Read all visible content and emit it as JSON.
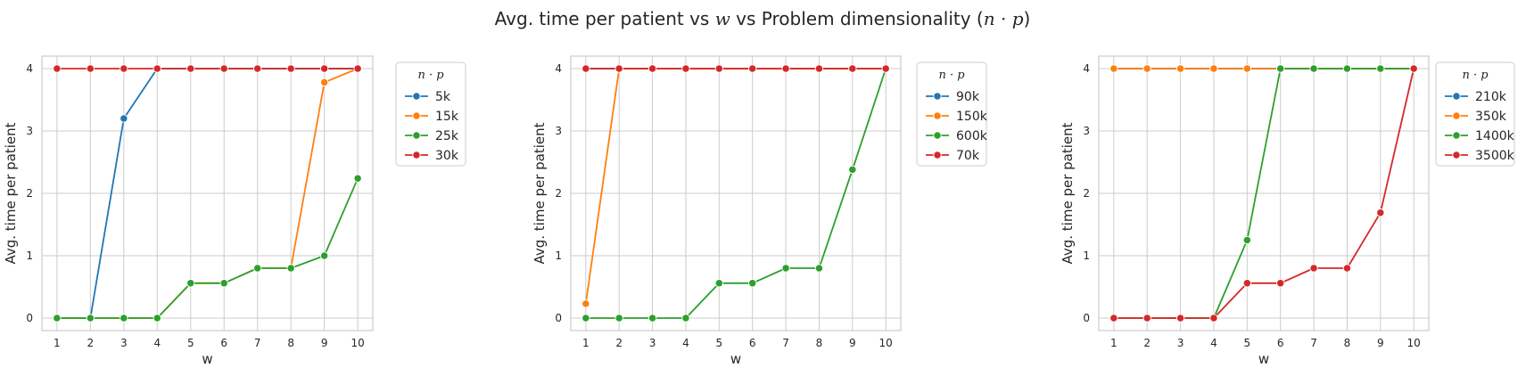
{
  "figure": {
    "title_prefix": "Avg. time per patient vs ",
    "title_var": "w",
    "title_mid": " vs Problem dimensionality (",
    "title_expr": "n · p",
    "title_suffix": ")"
  },
  "colors": {
    "c0": "#1f77b4",
    "c1": "#ff7f0e",
    "c2": "#2ca02c",
    "c3": "#d62728",
    "grid": "#cccccc",
    "frame": "#cccccc"
  },
  "chart_data": [
    {
      "type": "line",
      "xlabel": "w",
      "ylabel": "Avg. time per patient",
      "xlim": [
        0.55,
        10.45
      ],
      "ylim": [
        -0.2,
        4.2
      ],
      "xticks": [
        1,
        2,
        3,
        4,
        5,
        6,
        7,
        8,
        9,
        10
      ],
      "yticks": [
        0,
        1,
        2,
        3,
        4
      ],
      "grid": true,
      "legend_title": "n · p",
      "legend_loc": "outside-upper-right",
      "x": [
        1,
        2,
        3,
        4,
        5,
        6,
        7,
        8,
        9,
        10
      ],
      "series": [
        {
          "name": "5k",
          "color": "#1f77b4",
          "values": [
            0,
            0,
            3.2,
            4,
            4,
            4,
            4,
            4,
            4,
            4
          ]
        },
        {
          "name": "15k",
          "color": "#ff7f0e",
          "values": [
            0,
            0,
            0,
            0,
            0.56,
            0.56,
            0.8,
            0.8,
            3.78,
            4
          ]
        },
        {
          "name": "25k",
          "color": "#2ca02c",
          "values": [
            0,
            0,
            0,
            0,
            0.56,
            0.56,
            0.8,
            0.8,
            1.0,
            2.24
          ]
        },
        {
          "name": "30k",
          "color": "#d62728",
          "values": [
            4,
            4,
            4,
            4,
            4,
            4,
            4,
            4,
            4,
            4
          ]
        }
      ]
    },
    {
      "type": "line",
      "xlabel": "w",
      "ylabel": "Avg. time per patient",
      "xlim": [
        0.55,
        10.45
      ],
      "ylim": [
        -0.2,
        4.2
      ],
      "xticks": [
        1,
        2,
        3,
        4,
        5,
        6,
        7,
        8,
        9,
        10
      ],
      "yticks": [
        0,
        1,
        2,
        3,
        4
      ],
      "grid": true,
      "legend_title": "n · p",
      "legend_loc": "outside-upper-right",
      "x": [
        1,
        2,
        3,
        4,
        5,
        6,
        7,
        8,
        9,
        10
      ],
      "series": [
        {
          "name": "90k",
          "color": "#1f77b4",
          "values": [
            4,
            4,
            4,
            4,
            4,
            4,
            4,
            4,
            4,
            4
          ]
        },
        {
          "name": "150k",
          "color": "#ff7f0e",
          "values": [
            0.23,
            4,
            4,
            4,
            4,
            4,
            4,
            4,
            4,
            4
          ]
        },
        {
          "name": "600k",
          "color": "#2ca02c",
          "values": [
            0,
            0,
            0,
            0,
            0.56,
            0.56,
            0.8,
            0.8,
            2.38,
            4
          ]
        },
        {
          "name": "70k",
          "color": "#d62728",
          "values": [
            4,
            4,
            4,
            4,
            4,
            4,
            4,
            4,
            4,
            4
          ]
        }
      ]
    },
    {
      "type": "line",
      "xlabel": "w",
      "ylabel": "Avg. time per patient",
      "xlim": [
        0.55,
        10.45
      ],
      "ylim": [
        -0.2,
        4.2
      ],
      "xticks": [
        1,
        2,
        3,
        4,
        5,
        6,
        7,
        8,
        9,
        10
      ],
      "yticks": [
        0,
        1,
        2,
        3,
        4
      ],
      "grid": true,
      "legend_title": "n · p",
      "legend_loc": "outside-upper-right",
      "x": [
        1,
        2,
        3,
        4,
        5,
        6,
        7,
        8,
        9,
        10
      ],
      "series": [
        {
          "name": "210k",
          "color": "#1f77b4",
          "values": [
            4,
            4,
            4,
            4,
            4,
            4,
            4,
            4,
            4,
            4
          ]
        },
        {
          "name": "350k",
          "color": "#ff7f0e",
          "values": [
            4,
            4,
            4,
            4,
            4,
            4,
            4,
            4,
            4,
            4
          ]
        },
        {
          "name": "1400k",
          "color": "#2ca02c",
          "values": [
            0,
            0,
            0,
            0,
            1.25,
            4,
            4,
            4,
            4,
            4
          ]
        },
        {
          "name": "3500k",
          "color": "#d62728",
          "values": [
            0,
            0,
            0,
            0,
            0.56,
            0.56,
            0.8,
            0.8,
            1.69,
            4
          ]
        }
      ]
    }
  ]
}
